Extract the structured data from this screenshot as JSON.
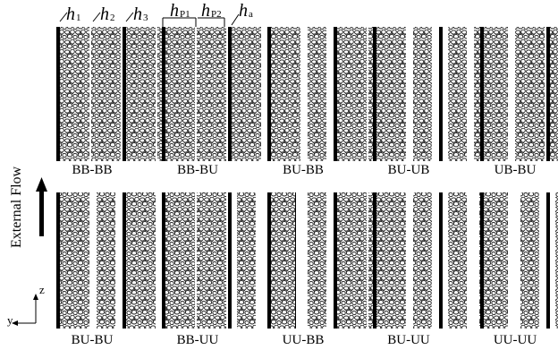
{
  "dimension_labels": {
    "h1": {
      "sym": "h",
      "sub": "1"
    },
    "h2": {
      "sym": "h",
      "sub": "2"
    },
    "h3": {
      "sym": "h",
      "sub": "3"
    },
    "hp1": {
      "sym": "h",
      "sub": "P1"
    },
    "hp2": {
      "sym": "h",
      "sub": "P2"
    },
    "ha": {
      "sym": "h",
      "sub": "a"
    }
  },
  "flow_label": "External Flow",
  "axes": {
    "z": "z",
    "y": "y"
  },
  "configurations": [
    {
      "name": "BB-BB",
      "code": "BBBB"
    },
    {
      "name": "BB-BU",
      "code": "BBBU"
    },
    {
      "name": "BU-BB",
      "code": "BUBB"
    },
    {
      "name": "BU-UB",
      "code": "BUUB"
    },
    {
      "name": "UB-BU",
      "code": "UBBU"
    },
    {
      "name": "BU-BU",
      "code": "BUBU"
    },
    {
      "name": "BB-UU",
      "code": "BBUU"
    },
    {
      "name": "UU-BB",
      "code": "UUBB"
    },
    {
      "name": "BU-UU",
      "code": "BUUU"
    },
    {
      "name": "UU-UU",
      "code": "UUUU"
    }
  ]
}
